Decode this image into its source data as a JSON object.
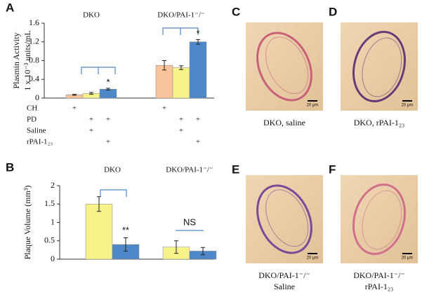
{
  "chart_data": [
    {
      "type": "bar",
      "label": "A",
      "ylabel": [
        "Plasmin Activity",
        "1 x 10⁻³ units/mL"
      ],
      "categories": [
        "DKO",
        "DKO/PAI-1⁻/⁻"
      ],
      "series": [
        {
          "color": "#f9c49a",
          "values": [
            0.07,
            0.7
          ],
          "errors": [
            0.01,
            0.1
          ]
        },
        {
          "color": "#f7f28a",
          "values": [
            0.1,
            0.65
          ],
          "errors": [
            0.02,
            0.04
          ]
        },
        {
          "color": "#4f88c8",
          "values": [
            0.19,
            1.2
          ],
          "errors": [
            0.02,
            0.05
          ]
        }
      ],
      "ylim": [
        0,
        1.6
      ],
      "yticks": [
        0,
        0.4,
        0.8,
        1.2,
        1.6
      ],
      "annotations": [
        "*",
        "*"
      ],
      "conditions": [
        {
          "label": "CH",
          "marks": [
            "+",
            null,
            null,
            "+",
            null,
            null
          ]
        },
        {
          "label": "PD",
          "marks": [
            null,
            "+",
            "+",
            null,
            "+",
            "+"
          ]
        },
        {
          "label": "Saline",
          "marks": [
            null,
            "+",
            null,
            null,
            "+",
            null
          ]
        },
        {
          "label": "rPAI-1₂₃",
          "marks": [
            null,
            null,
            "+",
            null,
            null,
            "+"
          ]
        }
      ]
    },
    {
      "type": "bar",
      "label": "B",
      "ylabel": [
        "Plaque Volume (mm³)"
      ],
      "categories": [
        "DKO",
        "DKO/PAI-1⁻/⁻"
      ],
      "series": [
        {
          "color": "#f7f28a",
          "values": [
            1.5,
            0.33
          ],
          "errors": [
            0.2,
            0.17
          ]
        },
        {
          "color": "#4f88c8",
          "values": [
            0.4,
            0.22
          ],
          "errors": [
            0.18,
            0.1
          ]
        }
      ],
      "ylim": [
        0,
        2
      ],
      "yticks": [
        0,
        0.5,
        1,
        1.5,
        2
      ],
      "annotations": [
        "**",
        "NS"
      ]
    }
  ],
  "panels": [
    {
      "label": "C",
      "caption": [
        "DKO, saline"
      ],
      "scale": "20 μm"
    },
    {
      "label": "D",
      "caption": [
        "DKO, rPAI-1₂₃"
      ],
      "scale": "20 μm"
    },
    {
      "label": "E",
      "caption": [
        "DKO/PAI-1⁻/⁻",
        "Saline"
      ],
      "scale": "20 μm"
    },
    {
      "label": "F",
      "caption": [
        "DKO/PAI-1⁻/⁻",
        "rPAI-1₂₃"
      ],
      "scale": "20 μm"
    }
  ]
}
